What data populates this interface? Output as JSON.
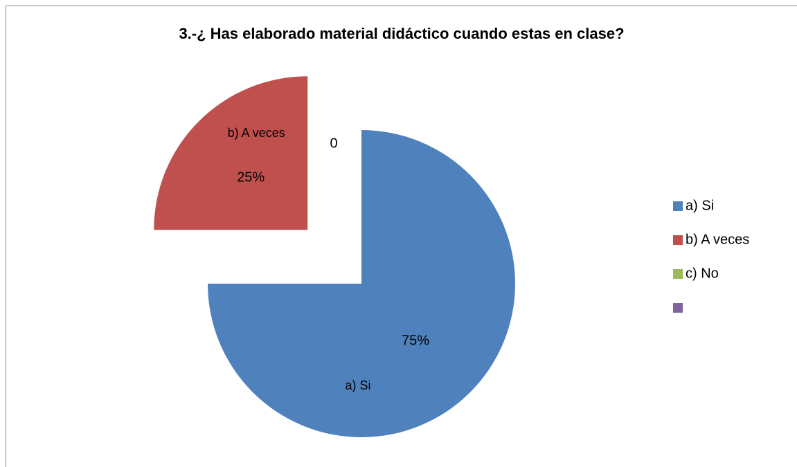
{
  "chart_data": {
    "type": "pie",
    "title": "3.-¿ Has elaborado material didáctico cuando estas en clase?",
    "categories": [
      "a) Si",
      "b) A veces",
      "c) No",
      null
    ],
    "values": [
      75,
      25,
      0,
      0
    ],
    "value_labels": [
      "75%",
      "25%",
      "0",
      null
    ],
    "colors": [
      "#4f81bd",
      "#c0504d",
      "#9bbb59",
      "#8064a2"
    ],
    "explode": [
      false,
      true,
      false,
      false
    ],
    "legend": "right"
  }
}
